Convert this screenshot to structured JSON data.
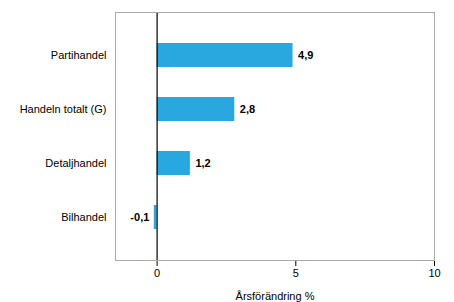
{
  "chart_data": {
    "type": "bar",
    "orientation": "horizontal",
    "categories": [
      "Bilhandel",
      "Detaljhandel",
      "Handeln totalt (G)",
      "Partihandel"
    ],
    "values": [
      -0.1,
      1.2,
      2.8,
      4.9
    ],
    "value_labels": [
      "-0,1",
      "1,2",
      "2,8",
      "4,9"
    ],
    "data_labels": true,
    "color": "#29a8e0",
    "xlabel": "Årsförändring %",
    "xlim": [
      -1.5,
      10
    ],
    "xticks": [
      0,
      5,
      10
    ],
    "grid": false
  }
}
